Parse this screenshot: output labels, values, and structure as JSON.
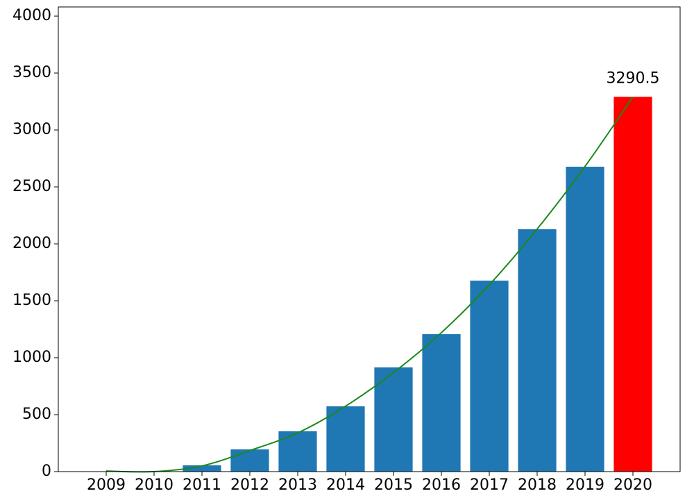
{
  "chart_data": {
    "type": "bar",
    "categories": [
      "2009",
      "2010",
      "2011",
      "2012",
      "2013",
      "2014",
      "2015",
      "2016",
      "2017",
      "2018",
      "2019",
      "2020"
    ],
    "values": [
      0,
      2,
      55,
      195,
      354,
      573,
      915,
      1207,
      1677,
      2128,
      2677,
      3290.5
    ],
    "colors": [
      "#1f77b4",
      "#1f77b4",
      "#1f77b4",
      "#1f77b4",
      "#1f77b4",
      "#1f77b4",
      "#1f77b4",
      "#1f77b4",
      "#1f77b4",
      "#1f77b4",
      "#1f77b4",
      "#ff0000"
    ],
    "value_labels": [
      null,
      null,
      null,
      null,
      null,
      null,
      null,
      null,
      null,
      null,
      null,
      "3290.5"
    ],
    "trend": {
      "color": "#1a8a1a",
      "values": [
        5,
        0,
        50,
        185,
        340,
        575,
        870,
        1220,
        1640,
        2130,
        2680,
        3290
      ]
    },
    "ylim": [
      0,
      4080
    ],
    "yticks": [
      0,
      500,
      1000,
      1500,
      2000,
      2500,
      3000,
      3500,
      4000
    ]
  }
}
